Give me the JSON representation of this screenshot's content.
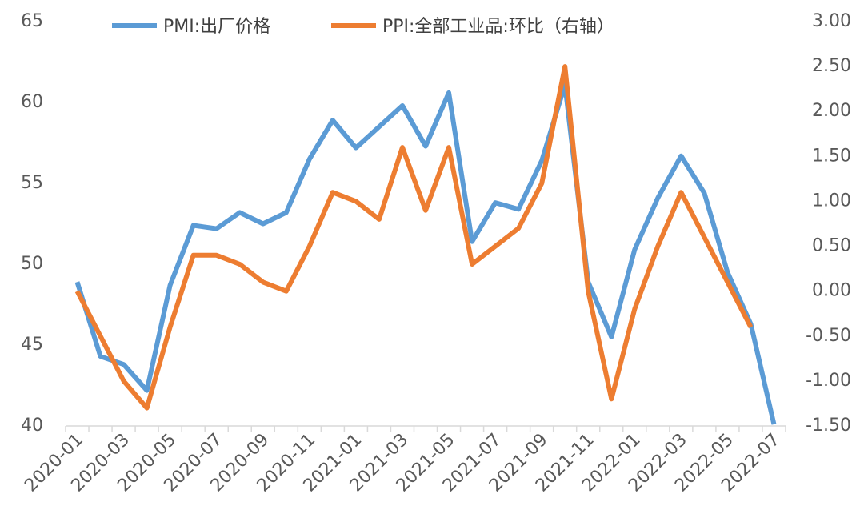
{
  "chart_data": {
    "type": "line",
    "title": "",
    "legend_position": "top",
    "grid": false,
    "x": [
      "2020-01",
      "2020-02",
      "2020-03",
      "2020-04",
      "2020-05",
      "2020-06",
      "2020-07",
      "2020-08",
      "2020-09",
      "2020-10",
      "2020-11",
      "2020-12",
      "2021-01",
      "2021-02",
      "2021-03",
      "2021-04",
      "2021-05",
      "2021-06",
      "2021-07",
      "2021-08",
      "2021-09",
      "2021-10",
      "2021-11",
      "2021-12",
      "2022-01",
      "2022-02",
      "2022-03",
      "2022-04",
      "2022-05",
      "2022-06",
      "2022-07"
    ],
    "x_tick_labels": [
      "2020-01",
      "2020-03",
      "2020-05",
      "2020-07",
      "2020-09",
      "2020-11",
      "2021-01",
      "2021-03",
      "2021-05",
      "2021-07",
      "2021-09",
      "2021-11",
      "2022-01",
      "2022-03",
      "2022-05",
      "2022-07"
    ],
    "y_left": {
      "range": [
        40,
        65
      ],
      "ticks": [
        "40",
        "45",
        "50",
        "55",
        "60",
        "65"
      ]
    },
    "y_right": {
      "range": [
        -1.5,
        3.0
      ],
      "ticks": [
        "-1.50",
        "-1.00",
        "-0.50",
        "0.00",
        "0.50",
        "1.00",
        "1.50",
        "2.00",
        "2.50",
        "3.00"
      ]
    },
    "series": [
      {
        "name": "PMI:出厂价格",
        "axis": "left",
        "color": "#5B9BD5",
        "values": [
          48.9,
          44.3,
          43.8,
          42.2,
          48.7,
          52.4,
          52.2,
          53.2,
          52.5,
          53.2,
          56.5,
          58.9,
          57.2,
          58.5,
          59.8,
          57.3,
          60.6,
          51.4,
          53.8,
          53.4,
          56.4,
          61.1,
          48.9,
          45.5,
          50.9,
          54.1,
          56.7,
          54.4,
          49.5,
          46.3,
          40.1
        ]
      },
      {
        "name": "PPI:全部工业品:环比（右轴）",
        "axis": "right",
        "color": "#ED7D31",
        "values": [
          0.0,
          -0.5,
          -1.0,
          -1.3,
          -0.4,
          0.4,
          0.4,
          0.3,
          0.1,
          0.0,
          0.5,
          1.1,
          1.0,
          0.8,
          1.6,
          0.9,
          1.6,
          0.3,
          0.5,
          0.7,
          1.2,
          2.5,
          0.0,
          -1.2,
          -0.2,
          0.5,
          1.1,
          0.6,
          0.1,
          -0.4,
          null
        ]
      }
    ]
  }
}
